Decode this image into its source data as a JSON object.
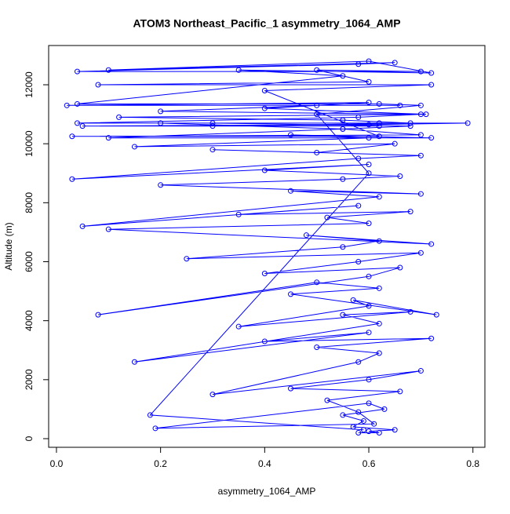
{
  "chart_data": {
    "type": "line",
    "marker": "circle",
    "title": "ATOM3 Northeast_Pacific_1 asymmetry_1064_AMP",
    "x_label": "asymmetry_1064_AMP",
    "y_label": "Altitude (m)",
    "color": "#0000ff",
    "xlim": [
      -0.015,
      0.823
    ],
    "ylim": [
      -293,
      13331
    ],
    "xticks": [
      {
        "value": 0,
        "label": "0.0"
      },
      0.2,
      0.4,
      0.6,
      0.8
    ],
    "yticks": [
      0,
      2000,
      4000,
      6000,
      8000,
      10000,
      12000
    ],
    "x": [
      0.58,
      0.62,
      0.6,
      0.65,
      0.57,
      0.59,
      0.55,
      0.63,
      0.6,
      0.19,
      0.61,
      0.58,
      0.52,
      0.66,
      0.45,
      0.6,
      0.7,
      0.3,
      0.58,
      0.62,
      0.5,
      0.72,
      0.4,
      0.6,
      0.15,
      0.62,
      0.55,
      0.68,
      0.35,
      0.6,
      0.57,
      0.73,
      0.45,
      0.62,
      0.5,
      0.08,
      0.6,
      0.66,
      0.4,
      0.58,
      0.7,
      0.25,
      0.55,
      0.62,
      0.48,
      0.72,
      0.1,
      0.6,
      0.52,
      0.68,
      0.35,
      0.58,
      0.05,
      0.62,
      0.45,
      0.7,
      0.2,
      0.55,
      0.66,
      0.4,
      0.6,
      0.03,
      0.58,
      0.7,
      0.3,
      0.5,
      0.65,
      0.15,
      0.6,
      0.45,
      0.72,
      0.1,
      0.55,
      0.68,
      0.3,
      0.62,
      0.04,
      0.58,
      0.7,
      0.2,
      0.5,
      0.66,
      0.02,
      0.6,
      0.4,
      0.71,
      0.12,
      0.55,
      0.68,
      0.3,
      0.62,
      0.05,
      0.6,
      0.79,
      0.2,
      0.55,
      0.7,
      0.03,
      0.62,
      0.4,
      0.72,
      0.08,
      0.6,
      0.5,
      0.7,
      0.04,
      0.58,
      0.65,
      0.1,
      0.6,
      0.72,
      0.35,
      0.55,
      0.04,
      0.62,
      0.7,
      0.5,
      0.6,
      0.18,
      0.59
    ],
    "values": [
      200,
      200,
      250,
      300,
      400,
      600,
      800,
      1000,
      1200,
      350,
      500,
      900,
      1300,
      1600,
      1700,
      2000,
      2300,
      1500,
      2600,
      2900,
      3100,
      3400,
      3300,
      3600,
      2600,
      3900,
      4200,
      4300,
      3800,
      4500,
      4700,
      4200,
      4900,
      5100,
      5300,
      4200,
      5500,
      5800,
      5600,
      6000,
      6300,
      6100,
      6500,
      6700,
      6900,
      6600,
      7100,
      7300,
      7500,
      7700,
      7600,
      7900,
      7200,
      8200,
      8400,
      8300,
      8600,
      8800,
      8900,
      9100,
      9300,
      8800,
      9500,
      9600,
      9800,
      9700,
      10000,
      9900,
      10200,
      10300,
      10200,
      10200,
      10500,
      10600,
      10700,
      10700,
      10700,
      10900,
      11000,
      11100,
      11300,
      11300,
      11300,
      11400,
      11200,
      11000,
      10900,
      10800,
      10700,
      10600,
      10600,
      10600,
      10650,
      10700,
      10700,
      10500,
      10300,
      10250,
      10250,
      11800,
      12000,
      12000,
      12100,
      12500,
      12450,
      12450,
      12700,
      12750,
      12500,
      12800,
      12400,
      12500,
      12300,
      11350,
      11350,
      11300,
      11000,
      9000,
      800,
      300
    ]
  }
}
